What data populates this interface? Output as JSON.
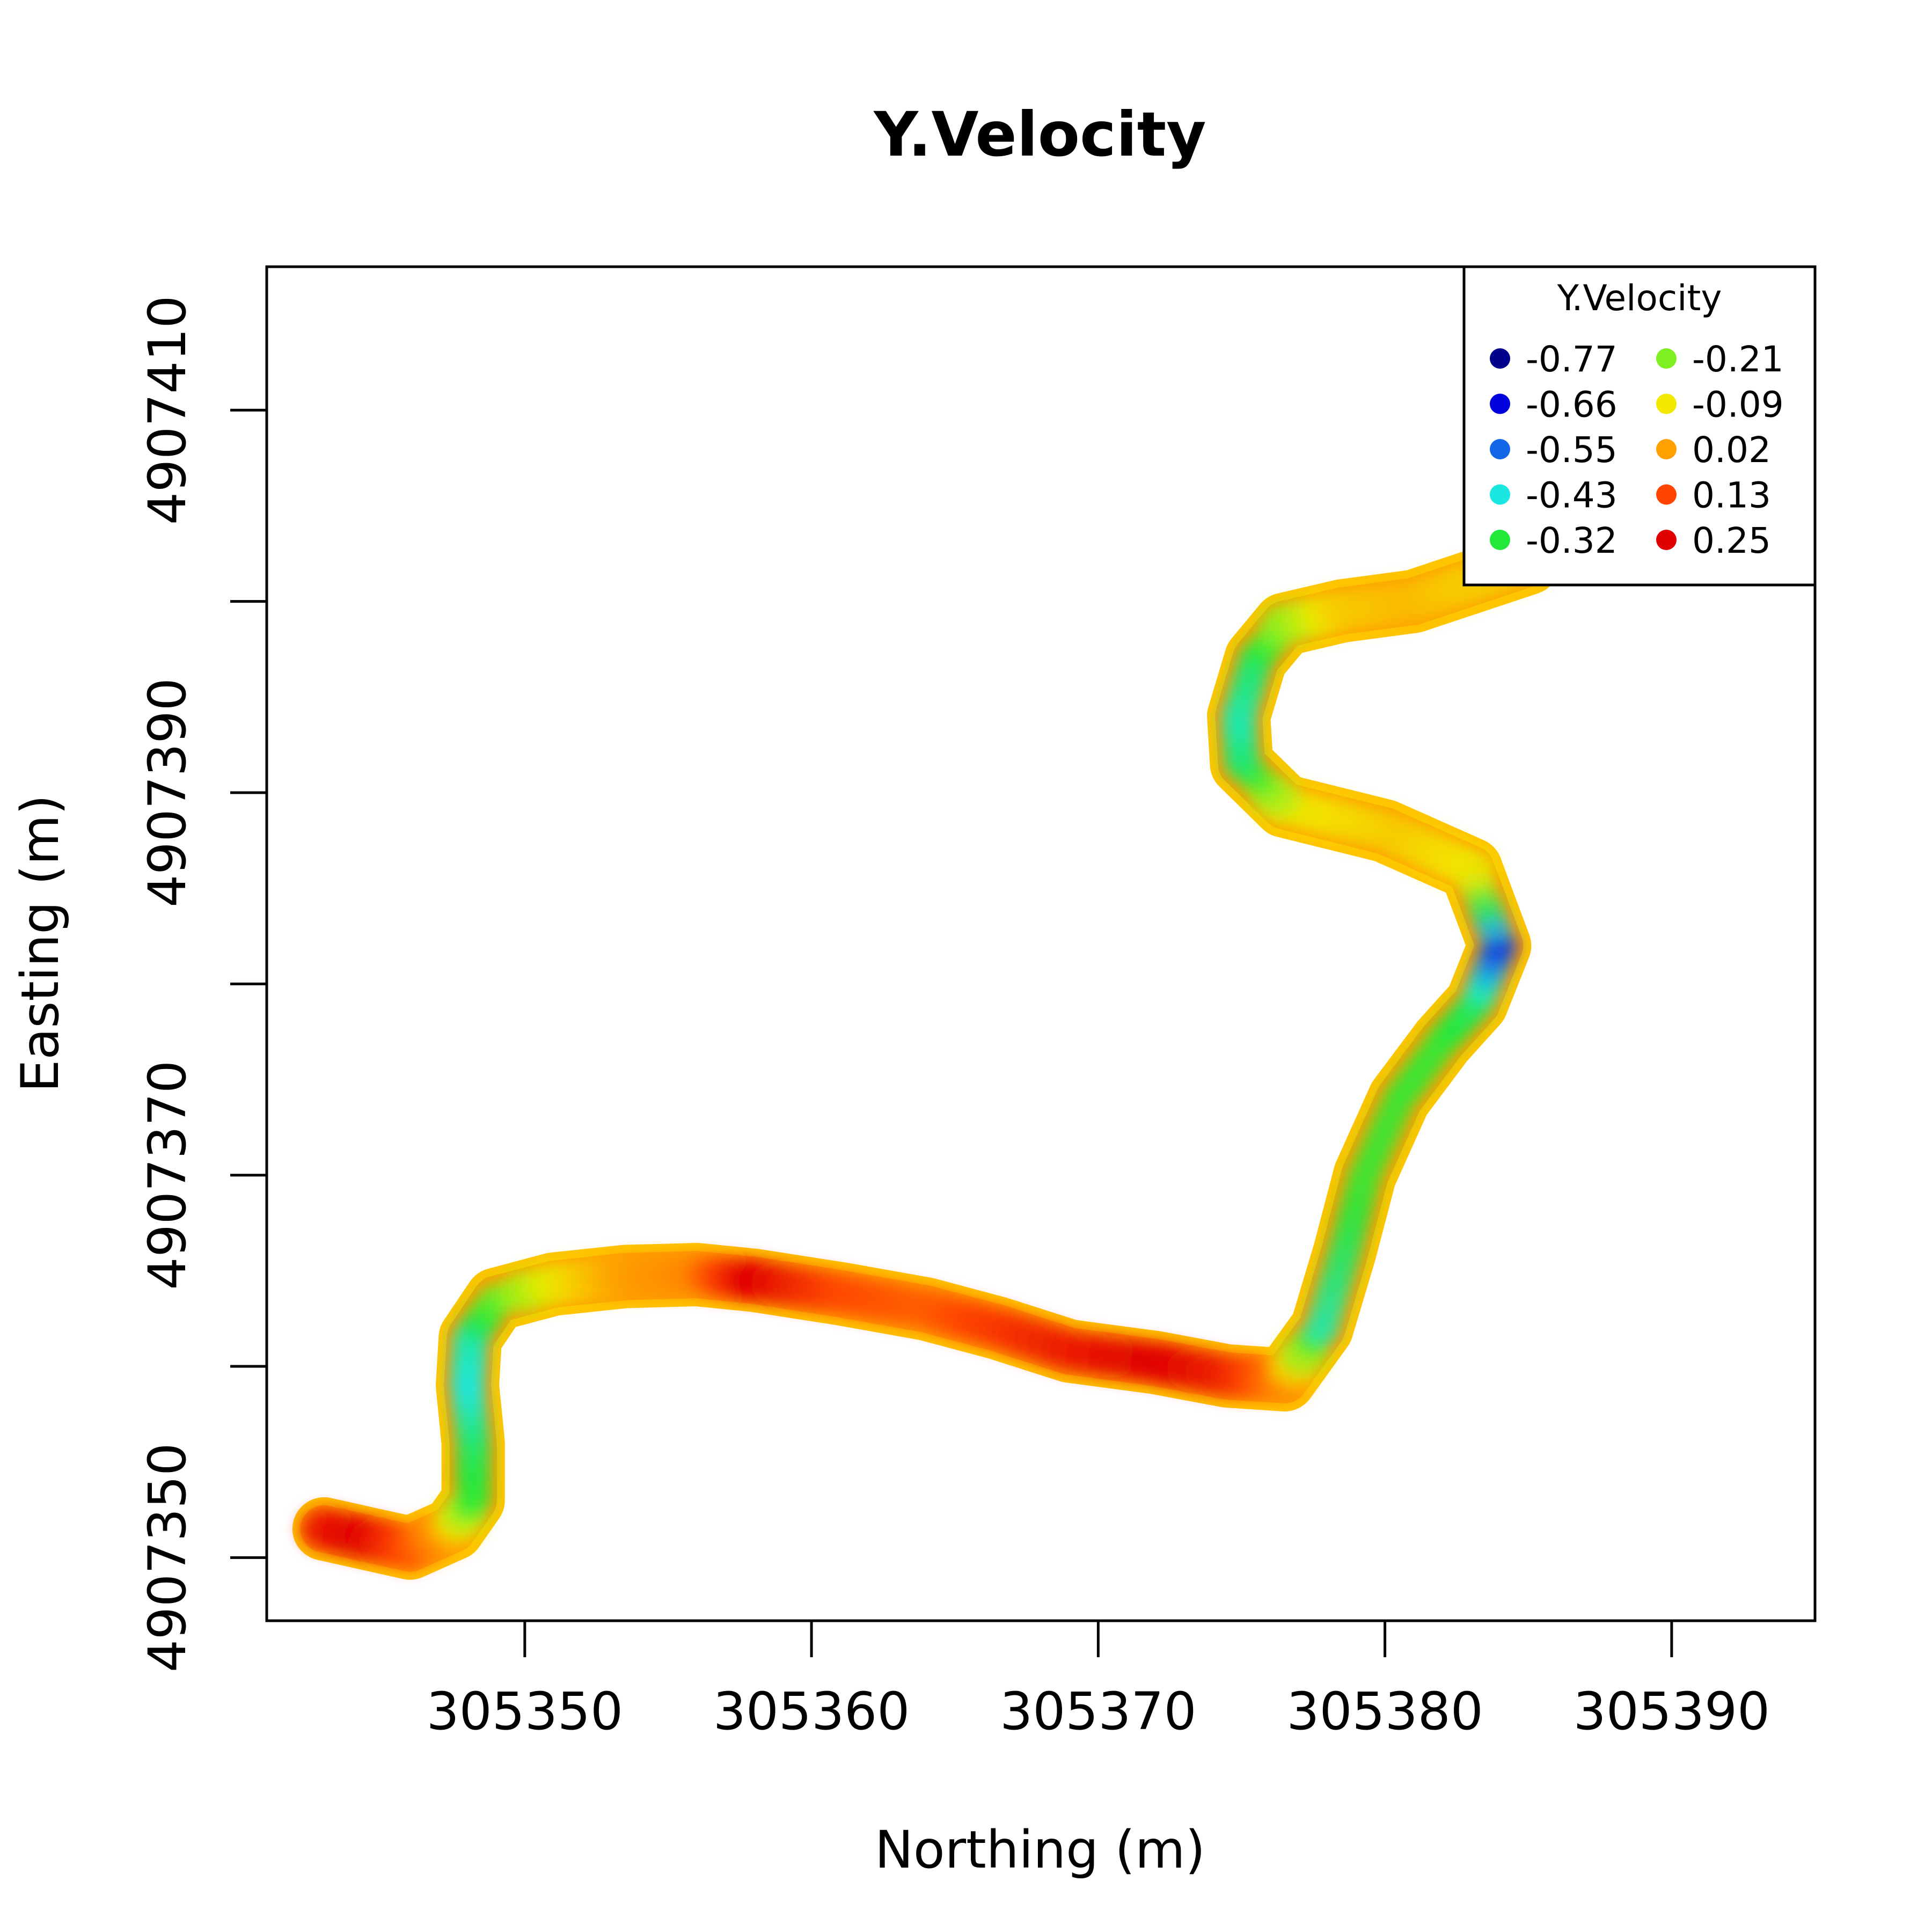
{
  "chart_data": {
    "type": "heatmap",
    "title": "Y.Velocity",
    "xlabel": "Northing (m)",
    "ylabel": "Easting (m)",
    "xlim": [
      305341,
      305395
    ],
    "ylim": [
      4907346.7,
      4907417.5
    ],
    "x_ticks": [
      305350,
      305360,
      305370,
      305380,
      305390
    ],
    "y_ticks": [
      4907350,
      4907360,
      4907370,
      4907380,
      4907390,
      4907400,
      4907410
    ],
    "y_tick_labels": [
      "4907350",
      "",
      "4907370",
      "",
      "4907390",
      "",
      "4907410"
    ],
    "grid": false,
    "legend": {
      "title": "Y.Velocity",
      "placement": "top-right",
      "entries": [
        {
          "label": "-0.77",
          "color": "#00008b"
        },
        {
          "label": "-0.66",
          "color": "#0000dd"
        },
        {
          "label": "-0.55",
          "color": "#1266e8"
        },
        {
          "label": "-0.43",
          "color": "#1ae8e0"
        },
        {
          "label": "-0.32",
          "color": "#22e83a"
        },
        {
          "label": "-0.21",
          "color": "#7ef022"
        },
        {
          "label": "-0.09",
          "color": "#f2e800"
        },
        {
          "label": "0.02",
          "color": "#ff9f00"
        },
        {
          "label": "0.13",
          "color": "#ff4500"
        },
        {
          "label": "0.25",
          "color": "#e00000"
        }
      ]
    },
    "channel_centerline": [
      [
        305343.0,
        4907351.5
      ],
      [
        305344.5,
        4907351.0
      ],
      [
        305346.0,
        4907350.5
      ],
      [
        305347.5,
        4907351.5
      ],
      [
        305348.2,
        4907353.0
      ],
      [
        305348.2,
        4907356.0
      ],
      [
        305348.0,
        4907359.0
      ],
      [
        305348.1,
        4907361.5
      ],
      [
        305349.0,
        4907363.5
      ],
      [
        305351.0,
        4907364.3
      ],
      [
        305353.5,
        4907364.7
      ],
      [
        305356.0,
        4907364.8
      ],
      [
        305358.0,
        4907364.5
      ],
      [
        305361.0,
        4907363.8
      ],
      [
        305364.0,
        4907363.0
      ],
      [
        305366.5,
        4907362.0
      ],
      [
        305369.0,
        4907360.8
      ],
      [
        305372.0,
        4907360.2
      ],
      [
        305374.5,
        4907359.5
      ],
      [
        305376.5,
        4907359.3
      ],
      [
        305377.8,
        4907362.0
      ],
      [
        305378.6,
        4907366.0
      ],
      [
        305379.3,
        4907370.0
      ],
      [
        305380.5,
        4907374.0
      ],
      [
        305382.0,
        4907377.0
      ],
      [
        305383.2,
        4907379.0
      ],
      [
        305384.0,
        4907382.0
      ],
      [
        305383.0,
        4907386.0
      ],
      [
        305380.0,
        4907388.0
      ],
      [
        305376.5,
        4907389.3
      ],
      [
        305375.0,
        4907391.5
      ],
      [
        305374.9,
        4907394.0
      ],
      [
        305375.5,
        4907397.0
      ],
      [
        305376.5,
        4907398.8
      ],
      [
        305378.5,
        4907399.5
      ],
      [
        305381.0,
        4907400.0
      ],
      [
        305383.0,
        4907401.0
      ],
      [
        305385.0,
        4907402.0
      ]
    ],
    "velocity_along_channel": [
      0.2,
      0.25,
      0.13,
      0.0,
      -0.3,
      -0.35,
      -0.43,
      -0.4,
      -0.25,
      -0.1,
      0.02,
      0.05,
      0.25,
      0.13,
      0.1,
      0.15,
      0.2,
      0.25,
      0.2,
      0.05,
      -0.4,
      -0.35,
      -0.3,
      -0.3,
      -0.3,
      -0.35,
      -0.6,
      -0.1,
      -0.05,
      -0.1,
      -0.35,
      -0.4,
      -0.35,
      -0.2,
      -0.05,
      -0.02,
      -0.05,
      -0.05
    ]
  }
}
